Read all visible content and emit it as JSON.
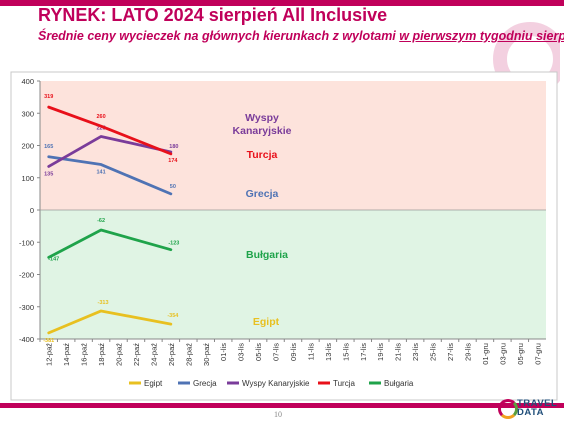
{
  "header": {
    "title": "RYNEK: LATO 2024 sierpień All Inclusive",
    "subtitle_main": "Średnie ceny wycieczek na głównych kierunkach z wylotami ",
    "subtitle_underlined": "w pierwszym tygodniu sierpnia"
  },
  "footer": {
    "page_number": "10",
    "logo_line1": "TRAVEL",
    "logo_line2": "DATA"
  },
  "colors": {
    "brand": "#c0005a",
    "positive_band": "#fde3dc",
    "negative_band": "#e0f4e4"
  },
  "chart_data": {
    "type": "line",
    "ylim": [
      -400,
      400
    ],
    "yticks": [
      400,
      300,
      200,
      100,
      0,
      -100,
      -200,
      -300,
      -400
    ],
    "categories": [
      "12-paź",
      "14-paź",
      "16-paź",
      "18-paź",
      "20-paź",
      "22-paź",
      "24-paź",
      "26-paź",
      "28-paź",
      "30-paź",
      "01-lis",
      "03-lis",
      "05-lis",
      "07-lis",
      "09-lis",
      "11-lis",
      "13-lis",
      "15-lis",
      "17-lis",
      "19-lis",
      "21-lis",
      "23-lis",
      "25-lis",
      "27-lis",
      "29-lis",
      "01-gru",
      "03-gru",
      "05-gru",
      "07-gru"
    ],
    "series": [
      {
        "name": "Egipt",
        "color": "#e8c020",
        "points": [
          [
            0,
            -381
          ],
          [
            3,
            -313
          ],
          [
            7,
            -354
          ]
        ],
        "labels": [
          "-381",
          "-313",
          "-354"
        ],
        "area_label": "Egipt"
      },
      {
        "name": "Grecja",
        "color": "#4f73b4",
        "points": [
          [
            0,
            165
          ],
          [
            3,
            141
          ],
          [
            7,
            50
          ]
        ],
        "labels": [
          "165",
          "141",
          "50"
        ],
        "area_label": "Grecja"
      },
      {
        "name": "Wyspy Kanaryjskie",
        "color": "#7a3c9a",
        "points": [
          [
            0,
            135
          ],
          [
            3,
            228
          ],
          [
            7,
            180
          ]
        ],
        "labels": [
          "135",
          "228",
          "180"
        ],
        "area_label": "Wyspy Kanaryjskie"
      },
      {
        "name": "Turcja",
        "color": "#e8101a",
        "points": [
          [
            0,
            319
          ],
          [
            3,
            260
          ],
          [
            7,
            174
          ]
        ],
        "labels": [
          "319",
          "260",
          "174"
        ],
        "area_label": "Turcja"
      },
      {
        "name": "Bułgaria",
        "color": "#1fa34a",
        "points": [
          [
            0,
            -147
          ],
          [
            3,
            -62
          ],
          [
            7,
            -123
          ]
        ],
        "labels": [
          "-147",
          "-62",
          "-123"
        ],
        "area_label": "Bułgaria"
      }
    ]
  }
}
